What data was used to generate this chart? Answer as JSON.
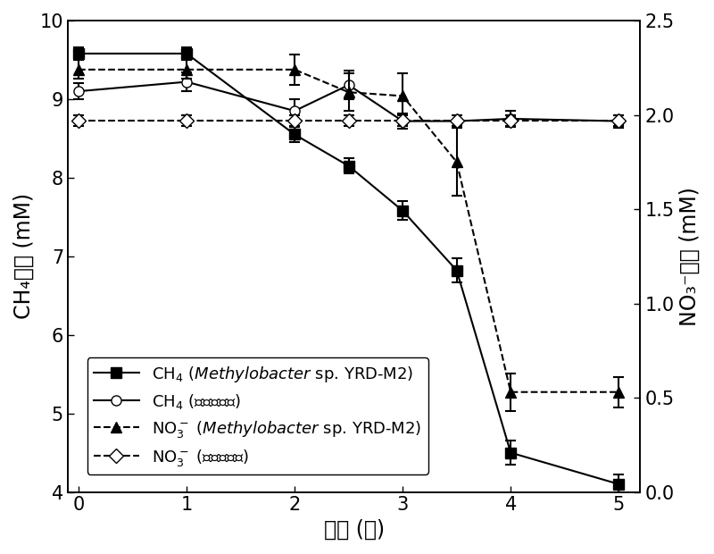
{
  "x_ch4_m2": [
    0,
    1,
    2,
    2.5,
    3,
    3.5,
    4,
    5
  ],
  "y_ch4_m2": [
    9.58,
    9.58,
    8.55,
    8.15,
    7.58,
    6.82,
    4.5,
    4.1
  ],
  "yerr_ch4_m2": [
    0.08,
    0.08,
    0.1,
    0.1,
    0.12,
    0.15,
    0.15,
    0.12
  ],
  "x_ch4_ctrl": [
    0,
    1,
    2,
    2.5,
    3,
    3.5,
    4,
    5
  ],
  "y_ch4_ctrl": [
    9.1,
    9.22,
    8.85,
    9.18,
    8.72,
    8.72,
    8.75,
    8.72
  ],
  "yerr_ch4_ctrl": [
    0.1,
    0.12,
    0.15,
    0.18,
    0.1,
    0.08,
    0.1,
    0.08
  ],
  "x_no3_m2": [
    0,
    1,
    2,
    2.5,
    3,
    3.5,
    4,
    5
  ],
  "y_no3_m2": [
    2.24,
    2.24,
    2.24,
    2.12,
    2.1,
    1.75,
    0.53,
    0.53
  ],
  "yerr_no3_m2": [
    0.05,
    0.05,
    0.08,
    0.1,
    0.12,
    0.18,
    0.1,
    0.08
  ],
  "x_no3_ctrl": [
    0,
    1,
    2,
    2.5,
    3,
    3.5,
    4,
    5
  ],
  "y_no3_ctrl": [
    1.97,
    1.97,
    1.97,
    1.97,
    1.97,
    1.97,
    1.97,
    1.97
  ],
  "yerr_no3_ctrl": [
    0.03,
    0.03,
    0.03,
    0.03,
    0.03,
    0.03,
    0.03,
    0.03
  ],
  "ylim_left": [
    4.0,
    10.0
  ],
  "ylim_right": [
    0.0,
    2.5
  ],
  "xlim": [
    -0.1,
    5.2
  ],
  "xticks": [
    0,
    1,
    2,
    3,
    4,
    5
  ],
  "yticks_left": [
    4,
    5,
    6,
    7,
    8,
    9,
    10
  ],
  "yticks_right": [
    0.0,
    0.5,
    1.0,
    1.5,
    2.0,
    2.5
  ],
  "xlabel": "时间 (天)",
  "ylabel_left": "CH₄浓度 (mM)",
  "ylabel_right": "NO₃⁻浓度 (mM)",
  "legend_label_ch4_m2_plain": "CH",
  "legend_label_ch4_ctrl_plain": "CH",
  "legend_label_no3_m2_plain": "NO",
  "legend_label_no3_ctrl_plain": "NO",
  "color": "black",
  "fontsize_label": 17,
  "fontsize_tick": 15,
  "fontsize_legend": 13,
  "linewidth": 1.5,
  "markersize": 8,
  "capsize": 4
}
